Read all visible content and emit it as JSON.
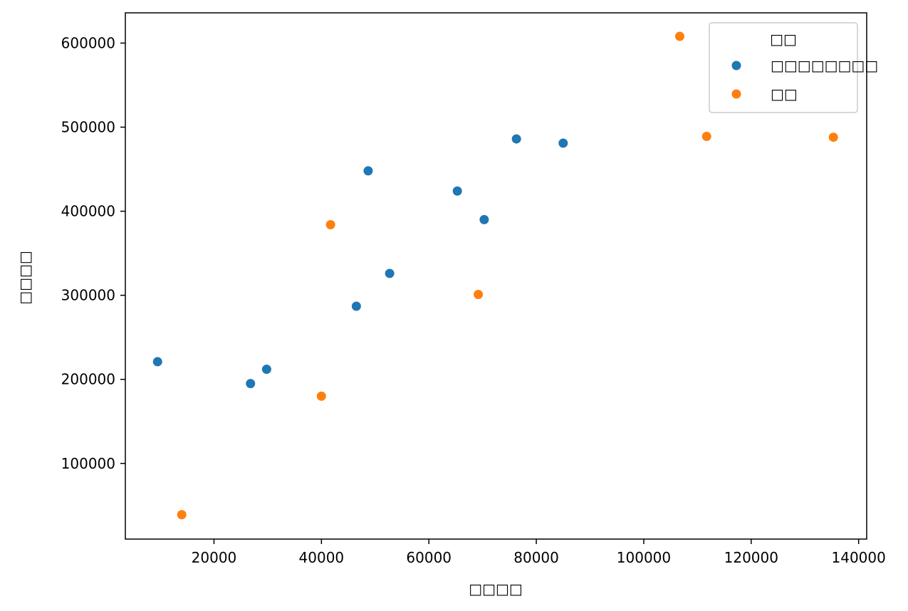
{
  "chart_data": {
    "type": "scatter",
    "title": "",
    "xlabel": "□□□□",
    "ylabel": "□□□□",
    "xlim": [
      3500,
      141500
    ],
    "ylim": [
      10000,
      636000
    ],
    "xticks": [
      20000,
      40000,
      60000,
      80000,
      100000,
      120000,
      140000
    ],
    "yticks": [
      100000,
      200000,
      300000,
      400000,
      500000,
      600000
    ],
    "grid": false,
    "legend": {
      "title": "□□",
      "placement": "upper-right"
    },
    "series": [
      {
        "name": "□□□□□□□□",
        "color": "#1f77b4",
        "points": [
          [
            9500,
            221000
          ],
          [
            26800,
            195000
          ],
          [
            29800,
            212000
          ],
          [
            46500,
            287000
          ],
          [
            48700,
            448000
          ],
          [
            52700,
            326000
          ],
          [
            65300,
            424000
          ],
          [
            70300,
            390000
          ],
          [
            76300,
            486000
          ],
          [
            85000,
            481000
          ]
        ]
      },
      {
        "name": "□□",
        "color": "#ff7f0e",
        "points": [
          [
            14000,
            39000
          ],
          [
            40000,
            180000
          ],
          [
            41700,
            384000
          ],
          [
            69200,
            301000
          ],
          [
            106700,
            608000
          ],
          [
            111700,
            489000
          ],
          [
            135300,
            488000
          ]
        ]
      }
    ]
  }
}
